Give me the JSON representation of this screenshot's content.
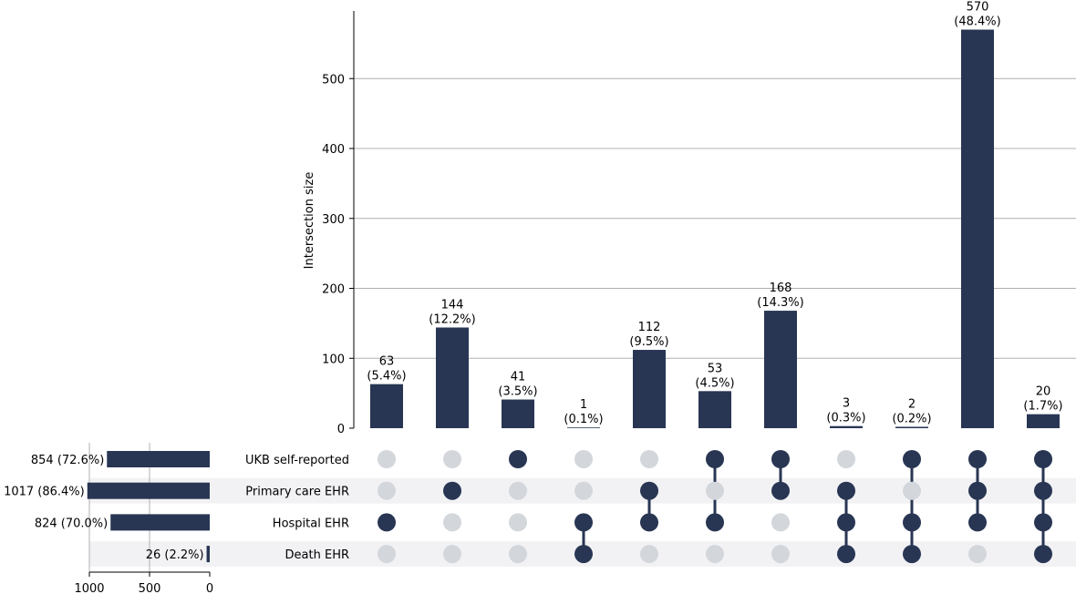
{
  "chart_data": {
    "type": "bar",
    "subtype": "upset",
    "ylabel": "Intersection size",
    "ylim": [
      0,
      600
    ],
    "yticks": [
      0,
      100,
      200,
      300,
      400,
      500
    ],
    "grid": true,
    "sets": [
      {
        "name": "UKB self-reported",
        "size": 854,
        "label": "854 (72.6%)"
      },
      {
        "name": "Primary care EHR",
        "size": 1017,
        "label": "1017 (86.4%)"
      },
      {
        "name": "Hospital EHR",
        "size": 824,
        "label": "824 (70.0%)"
      },
      {
        "name": "Death EHR",
        "size": 26,
        "label": "26 (2.2%)"
      }
    ],
    "set_size_axis": {
      "ticks": [
        1000,
        500,
        0
      ],
      "tick_labels": [
        "1000",
        "500",
        "0"
      ],
      "max": 1000
    },
    "intersections": [
      {
        "value": 63,
        "count_label": "63",
        "percent_label": "(5.4%)",
        "members": [
          0,
          0,
          1,
          0
        ]
      },
      {
        "value": 144,
        "count_label": "144",
        "percent_label": "(12.2%)",
        "members": [
          0,
          1,
          0,
          0
        ]
      },
      {
        "value": 41,
        "count_label": "41",
        "percent_label": "(3.5%)",
        "members": [
          1,
          0,
          0,
          0
        ]
      },
      {
        "value": 1,
        "count_label": "1",
        "percent_label": "(0.1%)",
        "members": [
          0,
          0,
          1,
          1
        ]
      },
      {
        "value": 112,
        "count_label": "112",
        "percent_label": "(9.5%)",
        "members": [
          0,
          1,
          1,
          0
        ]
      },
      {
        "value": 53,
        "count_label": "53",
        "percent_label": "(4.5%)",
        "members": [
          1,
          0,
          1,
          0
        ]
      },
      {
        "value": 168,
        "count_label": "168",
        "percent_label": "(14.3%)",
        "members": [
          1,
          1,
          0,
          0
        ]
      },
      {
        "value": 3,
        "count_label": "3",
        "percent_label": "(0.3%)",
        "members": [
          0,
          1,
          1,
          1
        ]
      },
      {
        "value": 2,
        "count_label": "2",
        "percent_label": "(0.2%)",
        "members": [
          1,
          0,
          1,
          1
        ]
      },
      {
        "value": 570,
        "count_label": "570",
        "percent_label": "(48.4%)",
        "members": [
          1,
          1,
          1,
          0
        ]
      },
      {
        "value": 20,
        "count_label": "20",
        "percent_label": "(1.7%)",
        "members": [
          1,
          1,
          1,
          1
        ]
      }
    ],
    "colors": {
      "bar": "#283653",
      "dot_active": "#283653",
      "dot_inactive": "#d3d6db",
      "grid": "#b0b0b0",
      "shade": "#f2f2f5"
    }
  }
}
